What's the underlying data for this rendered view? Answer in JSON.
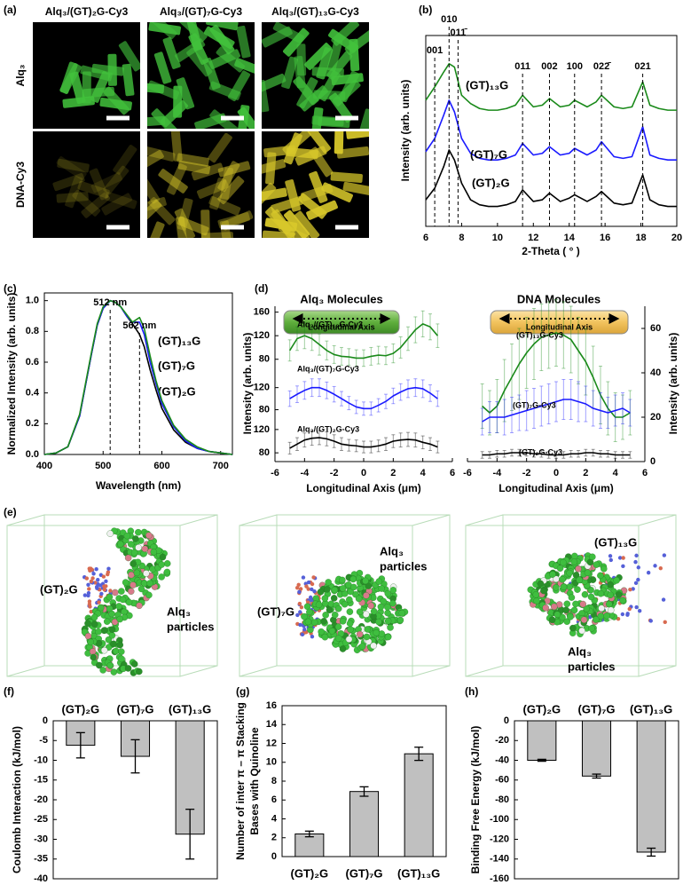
{
  "panel_a": {
    "panel": "(a)",
    "columns": [
      {
        "text": "Alq₃/(GT)₂G-Cy3",
        "color": "#000000"
      },
      {
        "text": "Alq₃/(GT)₇G-Cy3",
        "color": "#1a1aff"
      },
      {
        "text": "Alq₃/(GT)₁₃G-Cy3",
        "color": "#1a8a1a"
      }
    ],
    "rows": [
      "Alq₃",
      "DNA-Cy3"
    ]
  },
  "panel_e": {
    "panel": "(e)",
    "scenes": [
      {
        "dna": "(GT)₂G",
        "dna_color": "#000000",
        "particles": [
          "Alq₃",
          "particles"
        ]
      },
      {
        "dna": "(GT)₇G",
        "dna_color": "#1a1aff",
        "particles": [
          "Alq₃",
          "particles"
        ]
      },
      {
        "dna": "(GT)₁₃G",
        "dna_color": "#1a8a1a",
        "particles": [
          "Alq₃",
          "particles"
        ]
      }
    ]
  },
  "chart_data": [
    {
      "type": "line",
      "panel": "(b)",
      "xlabel": "2-Theta ( ° )",
      "ylabel": "Intensity (arb. units)",
      "xlim": [
        6,
        20
      ],
      "xticks": [
        6,
        8,
        10,
        12,
        14,
        16,
        18,
        20
      ],
      "ylim": [
        0,
        11.5
      ],
      "x": [
        6,
        6.5,
        7,
        7.3,
        7.6,
        8,
        8.5,
        9,
        9.5,
        10,
        10.5,
        11,
        11.4,
        12,
        12.5,
        12.9,
        13.5,
        14,
        14.3,
        15,
        15.5,
        15.8,
        16.5,
        17,
        17.5,
        18.1,
        18.5,
        19,
        19.5,
        20
      ],
      "series": [
        {
          "name": "(GT)₂G",
          "color": "#000000",
          "values": [
            1.6,
            2.3,
            3.6,
            4.6,
            4.0,
            2.6,
            1.6,
            1.3,
            1.2,
            1.2,
            1.3,
            1.5,
            2.2,
            1.5,
            1.6,
            2.0,
            1.5,
            1.7,
            1.9,
            1.5,
            1.8,
            2.1,
            1.4,
            1.3,
            1.4,
            3.1,
            1.6,
            1.3,
            1.2,
            1.2
          ]
        },
        {
          "name": "(GT)₇G",
          "color": "#1a1aff",
          "values": [
            4.5,
            5.3,
            6.7,
            7.6,
            6.9,
            5.3,
            4.4,
            4.1,
            4.0,
            4.0,
            4.1,
            4.3,
            5.0,
            4.3,
            4.4,
            4.8,
            4.3,
            4.4,
            4.7,
            4.3,
            4.6,
            5.1,
            4.2,
            4.1,
            4.2,
            6.0,
            4.3,
            4.1,
            4.0,
            4.0
          ]
        },
        {
          "name": "(GT)₁₃G",
          "color": "#1a8a1a",
          "values": [
            7.6,
            8.4,
            9.3,
            9.8,
            9.6,
            7.9,
            7.4,
            7.1,
            7.0,
            7.0,
            7.1,
            7.3,
            7.9,
            7.2,
            7.3,
            7.7,
            7.2,
            7.3,
            7.6,
            7.2,
            7.5,
            7.9,
            7.2,
            7.1,
            7.2,
            8.7,
            7.3,
            7.1,
            7.0,
            7.0
          ]
        }
      ],
      "annotations": [
        {
          "text": "001",
          "x": 6.5
        },
        {
          "text": "010",
          "x": 7.3
        },
        {
          "text": "011̄",
          "x": 7.8
        },
        {
          "text": "011",
          "x": 11.4
        },
        {
          "text": "002",
          "x": 12.9
        },
        {
          "text": "100",
          "x": 14.3
        },
        {
          "text": "022̄",
          "x": 15.8
        },
        {
          "text": "021",
          "x": 18.1
        }
      ]
    },
    {
      "type": "line",
      "panel": "(c)",
      "xlabel": "Wavelength (nm)",
      "ylabel": "Normalized Intensity (arb. units)",
      "xlim": [
        400,
        720
      ],
      "xticks": [
        400,
        500,
        600,
        700
      ],
      "ylim": [
        0,
        1.05
      ],
      "yticks": [
        {
          "value": 0,
          "label": "0.0"
        },
        0.2,
        0.4,
        0.6,
        0.8,
        {
          "value": 1,
          "label": "1.0"
        }
      ],
      "x": [
        400,
        420,
        440,
        460,
        470,
        480,
        490,
        500,
        512,
        520,
        530,
        540,
        550,
        562,
        570,
        580,
        590,
        600,
        620,
        640,
        660,
        680,
        700,
        720
      ],
      "series": [
        {
          "name": "(GT)₂G",
          "color": "#000000",
          "values": [
            0,
            0.01,
            0.05,
            0.25,
            0.45,
            0.65,
            0.84,
            0.95,
            1.0,
            0.99,
            0.96,
            0.9,
            0.85,
            0.78,
            0.7,
            0.55,
            0.42,
            0.3,
            0.16,
            0.08,
            0.04,
            0.02,
            0.01,
            0
          ]
        },
        {
          "name": "(GT)₇G",
          "color": "#1a1aff",
          "values": [
            0,
            0.01,
            0.05,
            0.25,
            0.45,
            0.65,
            0.84,
            0.95,
            1.0,
            0.99,
            0.96,
            0.9,
            0.86,
            0.86,
            0.78,
            0.6,
            0.46,
            0.33,
            0.18,
            0.09,
            0.04,
            0.02,
            0.01,
            0
          ]
        },
        {
          "name": "(GT)₁₃G",
          "color": "#1a8a1a",
          "values": [
            0,
            0.01,
            0.05,
            0.26,
            0.46,
            0.66,
            0.85,
            0.96,
            1.0,
            0.99,
            0.96,
            0.91,
            0.86,
            0.89,
            0.82,
            0.64,
            0.48,
            0.35,
            0.19,
            0.1,
            0.05,
            0.02,
            0.01,
            0
          ]
        }
      ],
      "annotations": [
        {
          "text": "512 nm",
          "x": 512
        },
        {
          "text": "562 nm",
          "x": 562
        }
      ]
    },
    {
      "type": "errorline",
      "panel": "(d)",
      "title": "Alq₃ Molecules",
      "axis_banner": "Longitudinal Axis",
      "xlim": [
        -6,
        6
      ],
      "ylim": [
        60,
        170
      ],
      "yticks": [
        80,
        120,
        160
      ],
      "x": [
        -5,
        -4.5,
        -4,
        -3.5,
        -3,
        -2.5,
        -2,
        -1.5,
        -1,
        -0.5,
        0,
        0.5,
        1,
        1.5,
        2,
        2.5,
        3,
        3.5,
        4,
        4.5,
        5
      ],
      "series": [
        {
          "name": "Alq₃/(GT)₁₃G-Cy3",
          "color": "#1a8a1a",
          "values": [
            95,
            115,
            120,
            115,
            105,
            95,
            88,
            85,
            84,
            82,
            82,
            85,
            87,
            86,
            90,
            100,
            115,
            130,
            140,
            135,
            120
          ],
          "errors": [
            18,
            20,
            22,
            20,
            18,
            16,
            15,
            15,
            14,
            14,
            14,
            15,
            15,
            15,
            16,
            18,
            20,
            22,
            22,
            22,
            20
          ]
        }
      ]
    },
    {
      "type": "errorline",
      "ylabel": "Intensity (arb. units)",
      "xlim": [
        -6,
        6
      ],
      "ylim": [
        60,
        150
      ],
      "yticks": [
        80,
        120
      ],
      "x": [
        -5,
        -4.5,
        -4,
        -3.5,
        -3,
        -2.5,
        -2,
        -1.5,
        -1,
        -0.5,
        0,
        0.5,
        1,
        1.5,
        2,
        2.5,
        3,
        3.5,
        4,
        4.5,
        5
      ],
      "series": [
        {
          "name": "Alq₃/(GT)₇G-Cy3",
          "color": "#1a1aff",
          "values": [
            100,
            108,
            115,
            120,
            120,
            115,
            108,
            100,
            92,
            85,
            82,
            82,
            88,
            95,
            105,
            112,
            118,
            120,
            118,
            110,
            100
          ],
          "errors": [
            14,
            15,
            16,
            16,
            16,
            15,
            14,
            13,
            12,
            12,
            12,
            12,
            12,
            13,
            14,
            15,
            16,
            16,
            16,
            15,
            14
          ]
        }
      ]
    },
    {
      "type": "errorline",
      "xlabel": "Longitudinal Axis (μm)",
      "xlim": [
        -6,
        6
      ],
      "xticks": [
        -6,
        -4,
        -2,
        0,
        2,
        4,
        6
      ],
      "ylim": [
        65,
        135
      ],
      "yticks": [
        80,
        120
      ],
      "x": [
        -5,
        -4.5,
        -4,
        -3.5,
        -3,
        -2.5,
        -2,
        -1.5,
        -1,
        -0.5,
        0,
        0.5,
        1,
        1.5,
        2,
        2.5,
        3,
        3.5,
        4,
        4.5,
        5
      ],
      "series": [
        {
          "name": "Alq₃/(GT)₂G-Cy3",
          "color": "#000000",
          "values": [
            88,
            95,
            102,
            105,
            106,
            104,
            100,
            95,
            93,
            92,
            90,
            90,
            92,
            95,
            100,
            102,
            103,
            102,
            98,
            95,
            90
          ],
          "errors": [
            10,
            11,
            12,
            12,
            12,
            12,
            11,
            11,
            10,
            10,
            10,
            10,
            10,
            11,
            11,
            12,
            12,
            12,
            11,
            11,
            10
          ]
        }
      ]
    },
    {
      "type": "errorline",
      "title": "DNA Molecules",
      "axis_banner": "Longitudinal Axis",
      "xlabel": "Longitudinal Axis (μm)",
      "ylabel": "Intensity (arb. units)",
      "xlim": [
        -6,
        6
      ],
      "xticks": [
        -6,
        -4,
        -2,
        0,
        2,
        4,
        6
      ],
      "ylim": [
        0,
        70
      ],
      "yticks": [
        0,
        20,
        40,
        60
      ],
      "x": [
        -5,
        -4.5,
        -4,
        -3.5,
        -3,
        -2.5,
        -2,
        -1.5,
        -1,
        -0.5,
        0,
        0.5,
        1,
        1.5,
        2,
        2.5,
        3,
        3.5,
        4,
        4.5,
        5
      ],
      "series": [
        {
          "name": "(GT)₁₃G-Cy3",
          "color": "#1a8a1a",
          "values": [
            25,
            22,
            25,
            32,
            38,
            44,
            49,
            53,
            56,
            57,
            58,
            57,
            55,
            50,
            45,
            38,
            30,
            24,
            20,
            20,
            22
          ],
          "errors": [
            10,
            10,
            12,
            14,
            15,
            16,
            16,
            16,
            15,
            15,
            15,
            15,
            15,
            15,
            15,
            14,
            13,
            12,
            11,
            10,
            10
          ]
        },
        {
          "name": "(GT)₇G-Cy3",
          "color": "#1a1aff",
          "values": [
            18,
            20,
            20,
            20,
            21,
            22,
            23,
            24,
            25,
            26,
            27,
            28,
            28,
            27,
            26,
            24,
            23,
            22,
            23,
            24,
            22
          ],
          "errors": [
            6,
            7,
            7,
            8,
            8,
            8,
            9,
            9,
            9,
            9,
            9,
            9,
            9,
            9,
            8,
            8,
            8,
            7,
            7,
            7,
            6
          ]
        },
        {
          "name": "(GT)₂G-Cy3",
          "color": "#000000",
          "values": [
            3,
            3,
            3.5,
            3.5,
            4,
            4,
            4,
            3.5,
            3.5,
            3,
            3,
            3,
            3.5,
            3.5,
            4,
            4,
            3.5,
            3.5,
            3,
            3,
            3
          ],
          "errors": [
            1.5,
            1.5,
            1.5,
            1.5,
            1.5,
            1.5,
            1.5,
            1.5,
            1.5,
            1.5,
            1.5,
            1.5,
            1.5,
            1.5,
            1.5,
            1.5,
            1.5,
            1.5,
            1.5,
            1.5,
            1.5
          ]
        }
      ]
    },
    {
      "type": "bar",
      "panel": "(f)",
      "ylabel": "Coulomb Interaction (kJ/mol)",
      "categories": [
        "(GT)₂G",
        "(GT)₇G",
        "(GT)₁₃G"
      ],
      "category_colors": [
        "#000000",
        "#1a1aff",
        "#1a8a1a"
      ],
      "category_label_position": "top",
      "color": "#c0c0c0",
      "values": [
        -6.2,
        -9,
        -28.7
      ],
      "errors": [
        3.2,
        4.2,
        6.3
      ],
      "ylim": [
        -40,
        0
      ],
      "yticks": [
        0,
        -5,
        -10,
        -15,
        -20,
        -25,
        -30,
        -35,
        -40
      ]
    },
    {
      "type": "bar",
      "panel": "(g)",
      "ylabel": [
        "Number of inter π – π Stacking",
        "Bases with Quinoline"
      ],
      "categories": [
        "(GT)₂G",
        "(GT)₇G",
        "(GT)₁₃G"
      ],
      "category_colors": [
        "#000000",
        "#1a1aff",
        "#1a8a1a"
      ],
      "category_label_position": "bottom",
      "color": "#c0c0c0",
      "values": [
        2.4,
        6.9,
        10.9
      ],
      "errors": [
        0.3,
        0.5,
        0.7
      ],
      "ylim": [
        0,
        16
      ],
      "yticks": [
        0,
        2,
        4,
        6,
        8,
        10,
        12,
        14,
        16
      ]
    },
    {
      "type": "bar",
      "panel": "(h)",
      "ylabel": "Binding Free Energy (kJ/mol)",
      "categories": [
        "(GT)₂G",
        "(GT)₇G",
        "(GT)₁₃G"
      ],
      "category_colors": [
        "#000000",
        "#1a1aff",
        "#1a8a1a"
      ],
      "category_label_position": "top",
      "color": "#c0c0c0",
      "values": [
        -40,
        -56,
        -133
      ],
      "errors": [
        1,
        2,
        4
      ],
      "ylim": [
        -160,
        0
      ],
      "yticks": [
        0,
        -20,
        -40,
        -60,
        -80,
        -100,
        -120,
        -140,
        -160
      ]
    }
  ]
}
